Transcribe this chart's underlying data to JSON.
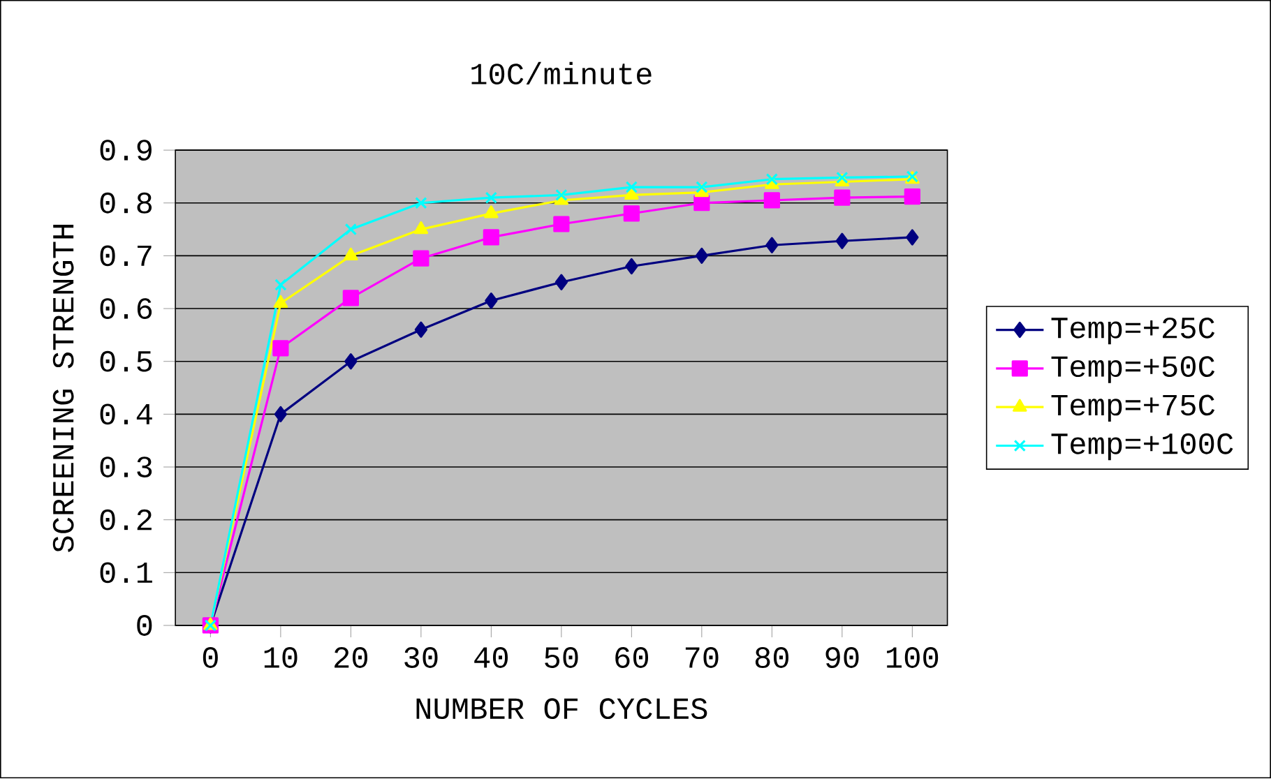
{
  "chart_data": {
    "type": "line",
    "title": "10C/minute",
    "xlabel": "NUMBER OF CYCLES",
    "ylabel": "SCREENING STRENGTH",
    "categories": [
      "0",
      "10",
      "20",
      "30",
      "40",
      "50",
      "60",
      "70",
      "80",
      "90",
      "100"
    ],
    "series": [
      {
        "name": "Temp=+25C",
        "color": "#000080",
        "marker": "diamond",
        "values": [
          0,
          0.4,
          0.5,
          0.56,
          0.615,
          0.65,
          0.68,
          0.7,
          0.72,
          0.728,
          0.735
        ]
      },
      {
        "name": "Temp=+50C",
        "color": "#ff00ff",
        "marker": "square",
        "values": [
          0,
          0.525,
          0.62,
          0.695,
          0.735,
          0.76,
          0.78,
          0.8,
          0.805,
          0.81,
          0.812
        ]
      },
      {
        "name": "Temp=+75C",
        "color": "#ffff00",
        "marker": "triangle",
        "values": [
          0,
          0.61,
          0.7,
          0.75,
          0.78,
          0.805,
          0.815,
          0.82,
          0.835,
          0.84,
          0.845
        ]
      },
      {
        "name": "Temp=+100C",
        "color": "#00ffff",
        "marker": "cross",
        "values": [
          0,
          0.645,
          0.75,
          0.8,
          0.81,
          0.815,
          0.83,
          0.83,
          0.845,
          0.848,
          0.85
        ]
      }
    ],
    "ylim": [
      0,
      0.9
    ],
    "yticks": [
      0,
      0.1,
      0.2,
      0.3,
      0.4,
      0.5,
      0.6,
      0.7,
      0.8,
      0.9
    ],
    "grid": "y",
    "legend": "right",
    "line_style": "solid"
  }
}
